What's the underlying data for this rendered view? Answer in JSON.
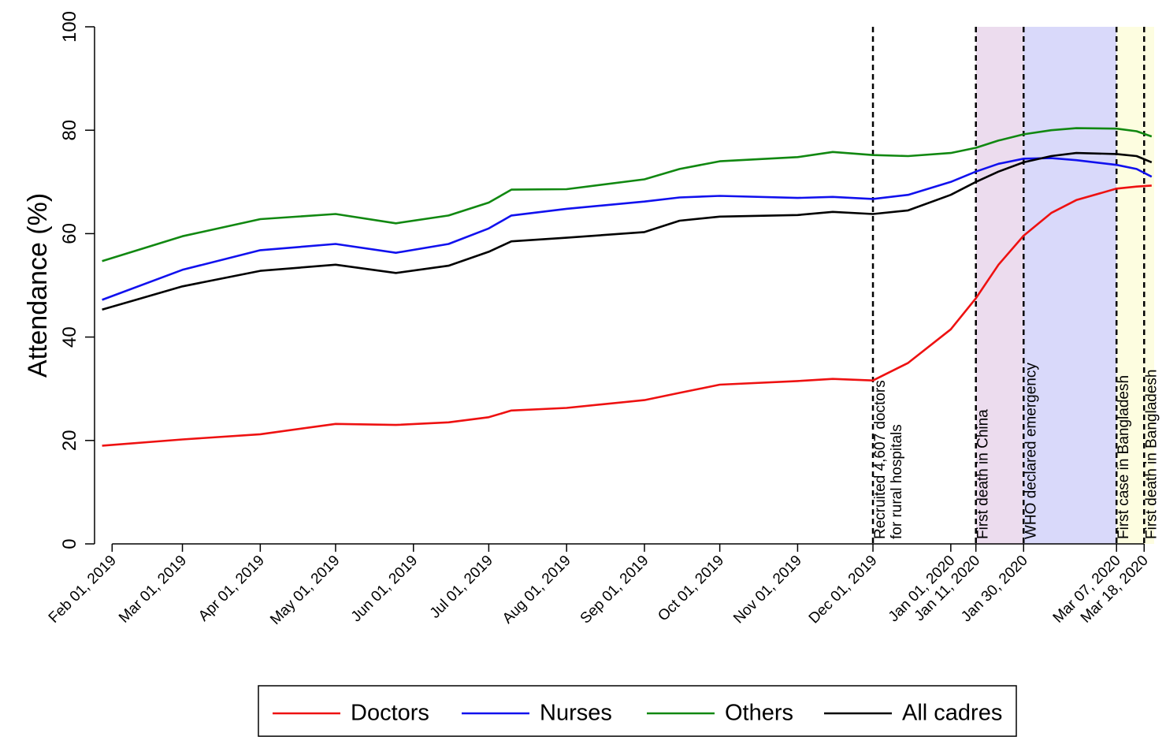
{
  "chart_data": {
    "type": "line",
    "y_label": "Attendance (%)",
    "x": [
      "2019-01-28",
      "2019-03-01",
      "2019-04-01",
      "2019-05-01",
      "2019-05-25",
      "2019-06-15",
      "2019-07-01",
      "2019-07-10",
      "2019-08-01",
      "2019-09-01",
      "2019-09-15",
      "2019-10-01",
      "2019-11-01",
      "2019-11-15",
      "2019-12-01",
      "2019-12-15",
      "2020-01-01",
      "2020-01-11",
      "2020-01-20",
      "2020-01-30",
      "2020-02-10",
      "2020-02-20",
      "2020-03-07",
      "2020-03-15",
      "2020-03-21"
    ],
    "series": [
      {
        "name": "Doctors",
        "color": "#ee1111",
        "values": [
          19,
          20.2,
          21.2,
          23.2,
          23,
          23.5,
          24.5,
          25.8,
          26.3,
          27.8,
          29.2,
          30.8,
          31.5,
          31.9,
          31.6,
          35,
          41.5,
          47.5,
          54,
          59.6,
          64,
          66.5,
          68.7,
          69.1,
          69.3
        ]
      },
      {
        "name": "Nurses",
        "color": "#1111ee",
        "values": [
          47.2,
          53,
          56.8,
          58,
          56.3,
          58,
          61,
          63.5,
          64.8,
          66.2,
          67,
          67.3,
          66.9,
          67.1,
          66.7,
          67.5,
          70,
          72,
          73.5,
          74.5,
          74.6,
          74.2,
          73.3,
          72.5,
          71
        ]
      },
      {
        "name": "Others",
        "color": "#118811",
        "values": [
          54.7,
          59.5,
          62.8,
          63.8,
          62,
          63.5,
          66,
          68.5,
          68.6,
          70.5,
          72.5,
          74,
          74.8,
          75.8,
          75.2,
          75,
          75.6,
          76.6,
          78,
          79.2,
          80,
          80.4,
          80.3,
          79.8,
          78.8
        ]
      },
      {
        "name": "All cadres",
        "color": "#000000",
        "values": [
          45.3,
          49.8,
          52.8,
          54,
          52.4,
          53.8,
          56.5,
          58.5,
          59.2,
          60.3,
          62.5,
          63.3,
          63.6,
          64.2,
          63.8,
          64.5,
          67.5,
          70,
          72,
          73.8,
          75,
          75.6,
          75.4,
          75,
          73.8
        ]
      }
    ],
    "xlim": [
      "2019-01-25",
      "2020-03-22"
    ],
    "xticks": [
      {
        "value": "2019-02-01",
        "label": "Feb 01, 2019"
      },
      {
        "value": "2019-03-01",
        "label": "Mar 01, 2019"
      },
      {
        "value": "2019-04-01",
        "label": "Apr 01, 2019"
      },
      {
        "value": "2019-05-01",
        "label": "May 01, 2019"
      },
      {
        "value": "2019-06-01",
        "label": "Jun 01, 2019"
      },
      {
        "value": "2019-07-01",
        "label": "Jul 01, 2019"
      },
      {
        "value": "2019-08-01",
        "label": "Aug 01, 2019"
      },
      {
        "value": "2019-09-01",
        "label": "Sep 01, 2019"
      },
      {
        "value": "2019-10-01",
        "label": "Oct 01, 2019"
      },
      {
        "value": "2019-11-01",
        "label": "Nov 01, 2019"
      },
      {
        "value": "2019-12-01",
        "label": "Dec 01, 2019"
      },
      {
        "value": "2020-01-01",
        "label": "Jan 01, 2020"
      },
      {
        "value": "2020-01-11",
        "label": "Jan 11, 2020"
      },
      {
        "value": "2020-01-30",
        "label": "Jan 30, 2020"
      },
      {
        "value": "2020-03-07",
        "label": "Mar 07, 2020"
      },
      {
        "value": "2020-03-18",
        "label": "Mar 18, 2020"
      }
    ],
    "ylim": [
      0,
      100
    ],
    "yticks": [
      0,
      20,
      40,
      60,
      80,
      100
    ],
    "shaded": [
      {
        "from": "2020-01-11",
        "to": "2020-01-30",
        "color": "#ecdcee"
      },
      {
        "from": "2020-01-30",
        "to": "2020-03-07",
        "color": "#d9d9fa"
      },
      {
        "from": "2020-03-07",
        "to": "2020-03-22",
        "color": "#fdfde0"
      }
    ],
    "events": [
      {
        "x": "2019-12-01",
        "lines": [
          "Recruited 4,607 doctors",
          "for rural hospitals"
        ]
      },
      {
        "x": "2020-01-11",
        "lines": [
          "First death in China"
        ]
      },
      {
        "x": "2020-01-30",
        "lines": [
          "WHO declared emergency"
        ]
      },
      {
        "x": "2020-03-07",
        "lines": [
          "First case in Bangladesh"
        ]
      },
      {
        "x": "2020-03-18",
        "lines": [
          "First death in Bangladesh"
        ]
      }
    ],
    "legend": "bottom"
  }
}
